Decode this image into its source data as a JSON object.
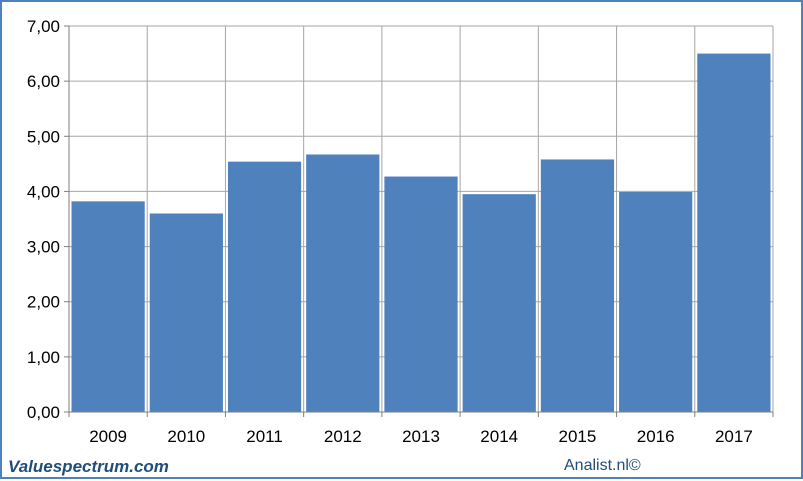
{
  "chart_data": {
    "type": "bar",
    "categories": [
      "2009",
      "2010",
      "2011",
      "2012",
      "2013",
      "2014",
      "2015",
      "2016",
      "2017"
    ],
    "values": [
      3.82,
      3.6,
      4.54,
      4.67,
      4.27,
      3.95,
      4.58,
      3.99,
      6.5
    ],
    "y_tick_labels": [
      "0,00",
      "1,00",
      "2,00",
      "3,00",
      "4,00",
      "5,00",
      "6,00",
      "7,00"
    ],
    "ylim": [
      0,
      7
    ],
    "grid": true,
    "title": "",
    "xlabel": "",
    "ylabel": "",
    "bar_color": "#4f81bd",
    "grid_color": "#a6a6a6"
  },
  "footer": {
    "brand": "Valuespectrum.com",
    "credit": "Analist.nl©"
  }
}
